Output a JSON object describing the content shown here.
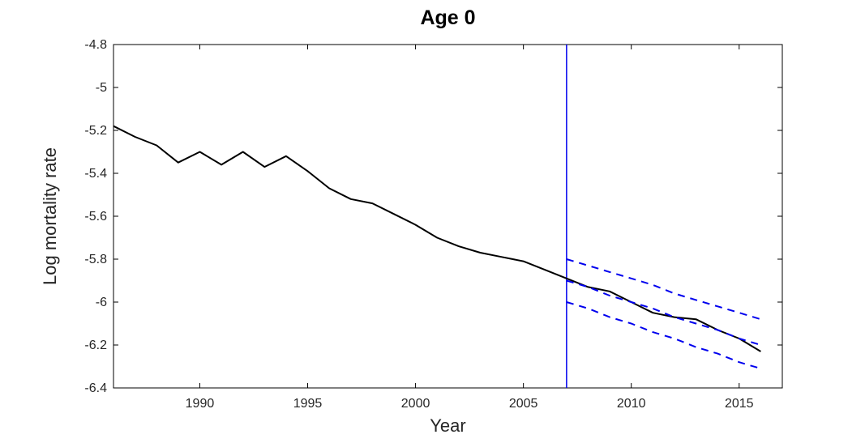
{
  "chart_data": {
    "type": "line",
    "title": "Age 0",
    "xlabel": "Year",
    "ylabel": "Log mortality rate",
    "xlim": [
      1986,
      2017
    ],
    "ylim": [
      -6.4,
      -4.8
    ],
    "grid": false,
    "legend": "none",
    "box": true,
    "x_ticks": {
      "values": [
        1990,
        1995,
        2000,
        2005,
        2010,
        2015
      ],
      "labels": [
        "1990",
        "1995",
        "2000",
        "2005",
        "2010",
        "2015"
      ]
    },
    "y_ticks": {
      "values": [
        -6.4,
        -6.2,
        -6.0,
        -5.8,
        -5.6,
        -5.4,
        -5.2,
        -5.0,
        -4.8
      ],
      "labels": [
        "-6.4",
        "-6.2",
        "-6",
        "-5.8",
        "-5.6",
        "-5.4",
        "-5.2",
        "-5",
        "-4.8"
      ]
    },
    "vline": {
      "x": 2007,
      "color": "#0000EE",
      "style": "solid",
      "width": 1.5
    },
    "series": [
      {
        "name": "observed-log-mortality",
        "color": "#000000",
        "style": "solid",
        "width": 2,
        "x": [
          1986,
          1987,
          1988,
          1989,
          1990,
          1991,
          1992,
          1993,
          1994,
          1995,
          1996,
          1997,
          1998,
          1999,
          2000,
          2001,
          2002,
          2003,
          2004,
          2005,
          2006,
          2007,
          2008,
          2009,
          2010,
          2011,
          2012,
          2013,
          2014,
          2015,
          2016
        ],
        "y": [
          -5.18,
          -5.23,
          -5.27,
          -5.35,
          -5.3,
          -5.36,
          -5.3,
          -5.37,
          -5.32,
          -5.39,
          -5.47,
          -5.52,
          -5.54,
          -5.59,
          -5.64,
          -5.7,
          -5.74,
          -5.77,
          -5.79,
          -5.81,
          -5.85,
          -5.89,
          -5.93,
          -5.95,
          -6.0,
          -6.05,
          -6.07,
          -6.08,
          -6.13,
          -6.17,
          -6.23
        ]
      },
      {
        "name": "forecast-central",
        "color": "#0000EE",
        "style": "dashed",
        "width": 2,
        "x": [
          2007,
          2008,
          2009,
          2010,
          2011,
          2012,
          2013,
          2014,
          2015,
          2016
        ],
        "y": [
          -5.9,
          -5.93,
          -5.97,
          -6.0,
          -6.03,
          -6.07,
          -6.1,
          -6.13,
          -6.17,
          -6.2
        ]
      },
      {
        "name": "forecast-upper-bound",
        "color": "#0000EE",
        "style": "dashed",
        "width": 2,
        "x": [
          2007,
          2008,
          2009,
          2010,
          2011,
          2012,
          2013,
          2014,
          2015,
          2016
        ],
        "y": [
          -5.8,
          -5.83,
          -5.86,
          -5.89,
          -5.92,
          -5.96,
          -5.99,
          -6.02,
          -6.05,
          -6.08
        ]
      },
      {
        "name": "forecast-lower-bound",
        "color": "#0000EE",
        "style": "dashed",
        "width": 2,
        "x": [
          2007,
          2008,
          2009,
          2010,
          2011,
          2012,
          2013,
          2014,
          2015,
          2016
        ],
        "y": [
          -6.0,
          -6.03,
          -6.07,
          -6.1,
          -6.14,
          -6.17,
          -6.21,
          -6.24,
          -6.28,
          -6.31
        ]
      }
    ]
  },
  "colors": {
    "observed_line": "#000000",
    "forecast_blue": "#0000EE",
    "axis_line": "#000000",
    "tick_label": "#262626",
    "background": "#FFFFFF"
  }
}
